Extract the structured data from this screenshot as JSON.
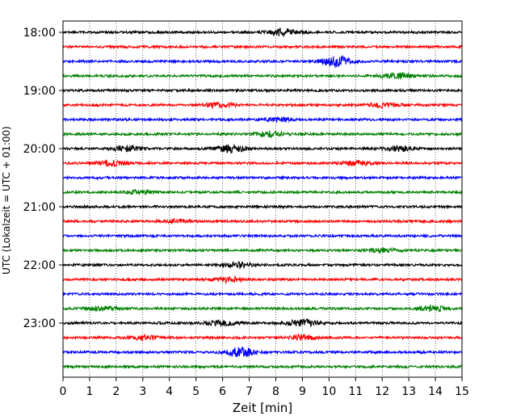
{
  "chart_data": {
    "type": "line",
    "xlabel": "Zeit  [min]",
    "ylabel": "UTC (Lokalzeit = UTC + 01:00)",
    "xlim": [
      0,
      15
    ],
    "x_ticks": [
      "0",
      "1",
      "2",
      "3",
      "4",
      "5",
      "6",
      "7",
      "8",
      "9",
      "10",
      "11",
      "12",
      "13",
      "14",
      "15"
    ],
    "y_tick_labels": [
      "18:00",
      "19:00",
      "20:00",
      "21:00",
      "22:00",
      "23:00"
    ],
    "grid": "vertical dotted",
    "trace_interval_min": 15,
    "trace_colors": [
      "#000000",
      "#ff0000",
      "#0000ff",
      "#008000"
    ],
    "traces": [
      {
        "start": "18:00",
        "color": "#000000",
        "events": [
          {
            "t": 8.3,
            "amp": 4
          }
        ]
      },
      {
        "start": "18:15",
        "color": "#ff0000",
        "events": []
      },
      {
        "start": "18:30",
        "color": "#0000ff",
        "events": [
          {
            "t": 10.3,
            "amp": 6
          }
        ]
      },
      {
        "start": "18:45",
        "color": "#008000",
        "events": [
          {
            "t": 12.6,
            "amp": 3
          }
        ]
      },
      {
        "start": "19:00",
        "color": "#000000",
        "events": []
      },
      {
        "start": "19:15",
        "color": "#ff0000",
        "events": [
          {
            "t": 5.9,
            "amp": 3
          },
          {
            "t": 12.0,
            "amp": 2.5
          }
        ]
      },
      {
        "start": "19:30",
        "color": "#0000ff",
        "events": [
          {
            "t": 8.0,
            "amp": 2.5
          }
        ]
      },
      {
        "start": "19:45",
        "color": "#008000",
        "events": [
          {
            "t": 7.8,
            "amp": 3
          }
        ]
      },
      {
        "start": "20:00",
        "color": "#000000",
        "events": [
          {
            "t": 2.4,
            "amp": 3
          },
          {
            "t": 6.3,
            "amp": 4
          },
          {
            "t": 12.7,
            "amp": 3
          }
        ]
      },
      {
        "start": "20:15",
        "color": "#ff0000",
        "events": [
          {
            "t": 1.8,
            "amp": 3
          },
          {
            "t": 11.0,
            "amp": 2.5
          }
        ]
      },
      {
        "start": "20:30",
        "color": "#0000ff",
        "events": []
      },
      {
        "start": "20:45",
        "color": "#008000",
        "events": [
          {
            "t": 2.9,
            "amp": 2
          }
        ]
      },
      {
        "start": "21:00",
        "color": "#000000",
        "events": []
      },
      {
        "start": "21:15",
        "color": "#ff0000",
        "events": [
          {
            "t": 4.3,
            "amp": 2
          }
        ]
      },
      {
        "start": "21:30",
        "color": "#0000ff",
        "events": []
      },
      {
        "start": "21:45",
        "color": "#008000",
        "events": [
          {
            "t": 12.0,
            "amp": 2.5
          }
        ]
      },
      {
        "start": "22:00",
        "color": "#000000",
        "events": [
          {
            "t": 6.5,
            "amp": 3
          }
        ]
      },
      {
        "start": "22:15",
        "color": "#ff0000",
        "events": [
          {
            "t": 6.2,
            "amp": 3
          }
        ]
      },
      {
        "start": "22:30",
        "color": "#0000ff",
        "events": []
      },
      {
        "start": "22:45",
        "color": "#008000",
        "events": [
          {
            "t": 1.5,
            "amp": 2.5
          },
          {
            "t": 13.9,
            "amp": 3
          }
        ]
      },
      {
        "start": "23:00",
        "color": "#000000",
        "events": [
          {
            "t": 6.0,
            "amp": 3
          },
          {
            "t": 9.0,
            "amp": 4
          }
        ]
      },
      {
        "start": "23:15",
        "color": "#ff0000",
        "events": [
          {
            "t": 3.0,
            "amp": 2.5
          },
          {
            "t": 9.0,
            "amp": 3
          }
        ]
      },
      {
        "start": "23:30",
        "color": "#0000ff",
        "events": [
          {
            "t": 6.7,
            "amp": 5.5
          }
        ]
      },
      {
        "start": "23:45",
        "color": "#008000",
        "events": []
      }
    ]
  }
}
